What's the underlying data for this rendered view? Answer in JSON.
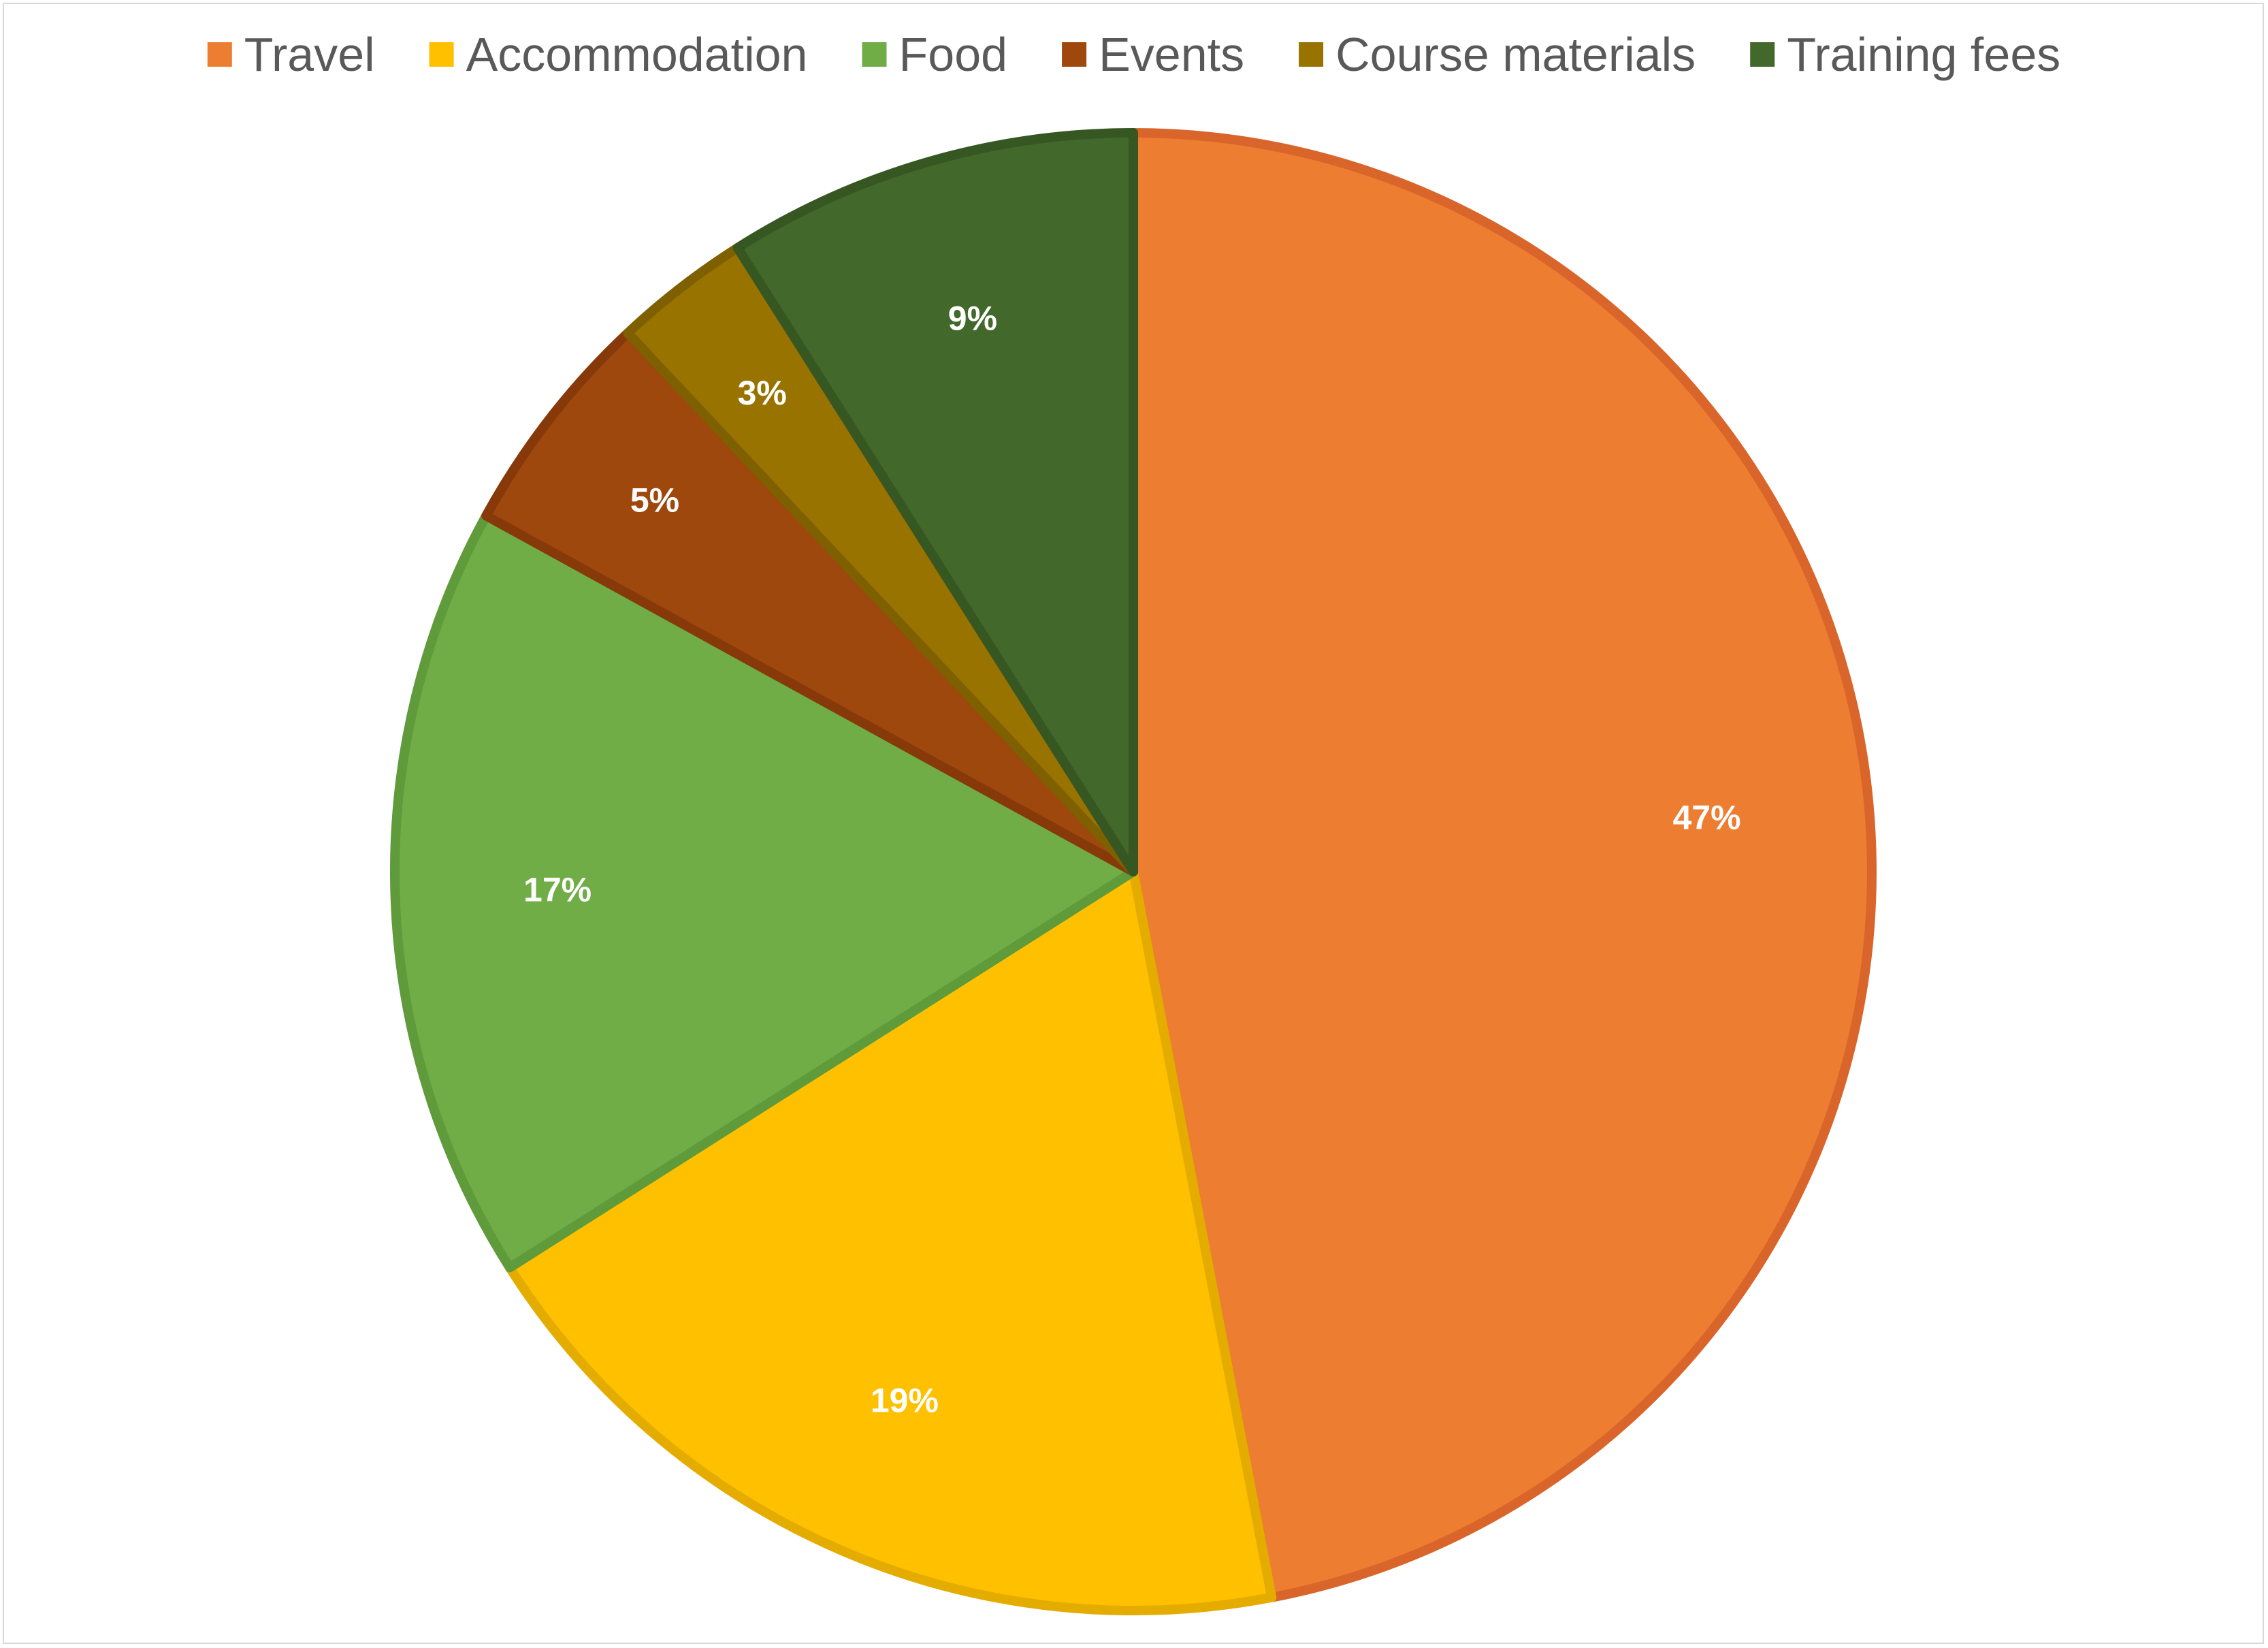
{
  "chart_data": {
    "type": "pie",
    "title": "",
    "categories": [
      "Travel",
      "Accommodation",
      "Food",
      "Events",
      "Course materials",
      "Training fees"
    ],
    "values": [
      47,
      19,
      17,
      5,
      3,
      9
    ],
    "labels": [
      "47%",
      "19%",
      "17%",
      "5%",
      "3%",
      "9%"
    ],
    "unit": "%",
    "start_angle_deg": 0,
    "direction": "clockwise",
    "legend_position": "top",
    "colors": [
      "#ED7D31",
      "#FFC000",
      "#70AD47",
      "#9E480E",
      "#997300",
      "#43682B"
    ],
    "border_colors": [
      "#D9652A",
      "#E5AC00",
      "#5F9A3B",
      "#87390A",
      "#7F6000",
      "#375722"
    ]
  }
}
